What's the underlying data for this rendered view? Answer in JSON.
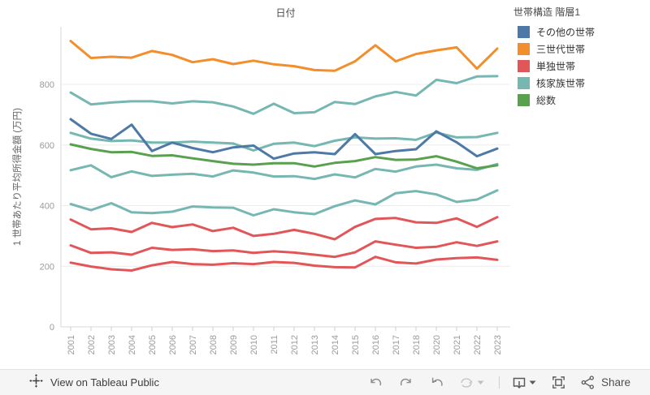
{
  "chart": {
    "title": "日付",
    "y_axis_title": "1 世帯あたり平均所得金額 (万円)",
    "legend": {
      "title": "世帯構造 階層1",
      "items": [
        {
          "label": "その他の世帯",
          "color": "#4E79A7"
        },
        {
          "label": "三世代世帯",
          "color": "#F28E2B"
        },
        {
          "label": "単独世帯",
          "color": "#E15759"
        },
        {
          "label": "核家族世帯",
          "color": "#76B7B2"
        },
        {
          "label": "総数",
          "color": "#59A14F"
        }
      ]
    }
  },
  "chart_data": {
    "type": "line",
    "title": "日付",
    "ylabel": "1 世帯あたり平均所得金額 (万円)",
    "x": [
      "2001",
      "2002",
      "2003",
      "2004",
      "2005",
      "2006",
      "2007",
      "2008",
      "2009",
      "2010",
      "2011",
      "2012",
      "2013",
      "2014",
      "2015",
      "2016",
      "2017",
      "2018",
      "2020",
      "2021",
      "2022",
      "2023"
    ],
    "y_ticks": [
      0,
      200,
      400,
      600,
      800
    ],
    "ylim": [
      0,
      990
    ],
    "grid": "horizontal",
    "legend_position": "top-right",
    "series": [
      {
        "name": "核家族世帯 (a)",
        "color": "#76B7B2",
        "values": [
          773,
          734,
          740,
          744,
          744,
          737,
          744,
          741,
          727,
          703,
          736,
          705,
          708,
          742,
          735,
          760,
          775,
          763,
          815,
          804,
          826,
          827
        ]
      },
      {
        "name": "核家族世帯 (b)",
        "color": "#76B7B2",
        "values": [
          640,
          621,
          613,
          615,
          608,
          608,
          611,
          608,
          605,
          582,
          604,
          608,
          596,
          614,
          625,
          621,
          622,
          617,
          641,
          625,
          626,
          640
        ]
      },
      {
        "name": "核家族世帯 (c)",
        "color": "#76B7B2",
        "values": [
          517,
          533,
          494,
          513,
          498,
          502,
          505,
          496,
          516,
          509,
          496,
          497,
          488,
          503,
          493,
          521,
          512,
          529,
          535,
          523,
          518,
          537
        ]
      },
      {
        "name": "核家族世帯 (d)",
        "color": "#76B7B2",
        "values": [
          405,
          385,
          408,
          378,
          375,
          380,
          397,
          394,
          393,
          368,
          388,
          378,
          372,
          398,
          417,
          404,
          441,
          448,
          437,
          412,
          420,
          450
        ]
      },
      {
        "name": "単独世帯 (a)",
        "color": "#E15759",
        "values": [
          354,
          322,
          325,
          313,
          343,
          329,
          338,
          316,
          327,
          300,
          307,
          320,
          307,
          289,
          330,
          356,
          359,
          345,
          343,
          358,
          330,
          362
        ]
      },
      {
        "name": "単独世帯 (b)",
        "color": "#E15759",
        "values": [
          269,
          244,
          246,
          238,
          261,
          254,
          256,
          250,
          252,
          244,
          249,
          245,
          238,
          231,
          246,
          282,
          271,
          261,
          264,
          279,
          267,
          282
        ]
      },
      {
        "name": "単独世帯 (c)",
        "color": "#E15759",
        "values": [
          212,
          199,
          190,
          186,
          203,
          214,
          207,
          205,
          210,
          207,
          214,
          211,
          202,
          197,
          196,
          231,
          213,
          209,
          222,
          227,
          229,
          221
        ]
      },
      {
        "name": "総数",
        "color": "#59A14F",
        "values": [
          602,
          587,
          576,
          577,
          564,
          566,
          556,
          547,
          538,
          535,
          540,
          540,
          529,
          541,
          547,
          560,
          551,
          552,
          563,
          545,
          523,
          533
        ]
      },
      {
        "name": "三世代世帯",
        "color": "#F28E2B",
        "values": [
          943,
          887,
          891,
          888,
          910,
          897,
          873,
          883,
          867,
          878,
          866,
          860,
          847,
          845,
          876,
          929,
          876,
          900,
          912,
          922,
          852,
          918
        ]
      },
      {
        "name": "その他の世帯",
        "color": "#4E79A7",
        "values": [
          685,
          637,
          620,
          667,
          580,
          608,
          590,
          576,
          592,
          598,
          555,
          572,
          576,
          570,
          636,
          570,
          580,
          586,
          645,
          609,
          563,
          588
        ]
      }
    ]
  },
  "footer": {
    "view_on": "View on Tableau Public",
    "share": "Share"
  }
}
